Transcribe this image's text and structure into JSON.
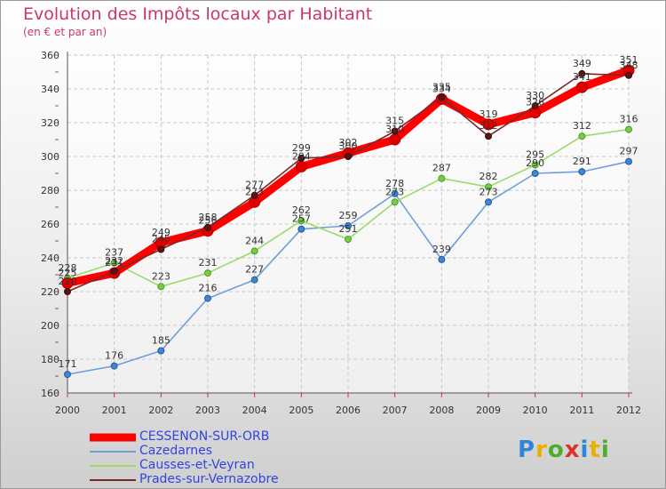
{
  "header": {
    "title": "Evolution des Impôts locaux par Habitant",
    "subtitle": "(en € et par an)"
  },
  "logo": {
    "text": "Proxiti",
    "letters": [
      {
        "ch": "P",
        "color": "#2f86d9"
      },
      {
        "ch": "r",
        "color": "#e8b000"
      },
      {
        "ch": "o",
        "color": "#4cae2c"
      },
      {
        "ch": "x",
        "color": "#d9332c"
      },
      {
        "ch": "i",
        "color": "#2f86d9"
      },
      {
        "ch": "t",
        "color": "#e8b000"
      },
      {
        "ch": "i",
        "color": "#4cae2c"
      }
    ]
  },
  "chart_data": {
    "type": "line",
    "title": "Evolution des Impôts locaux par Habitant",
    "subtitle": "(en € et par an)",
    "xlabel": "",
    "ylabel": "",
    "categories": [
      "2000",
      "2001",
      "2002",
      "2003",
      "2004",
      "2005",
      "2006",
      "2007",
      "2008",
      "2009",
      "2010",
      "2011",
      "2012"
    ],
    "ylim": [
      160,
      360
    ],
    "yticks": [
      160,
      180,
      200,
      220,
      240,
      260,
      280,
      300,
      320,
      340,
      360
    ],
    "grid": true,
    "legend_position": "bottom-left",
    "series": [
      {
        "name": "CESSENON-SUR-ORB",
        "color": "#ff0000",
        "values": [
          225,
          231,
          249,
          256,
          273,
          294,
          302,
          310,
          334,
          319,
          326,
          341,
          351
        ]
      },
      {
        "name": "Cazedarnes",
        "color": "#6f9fd8",
        "values": [
          171,
          176,
          185,
          216,
          227,
          257,
          259,
          278,
          239,
          273,
          290,
          291,
          297
        ]
      },
      {
        "name": "Causses-et-Veyran",
        "color": "#99dd66",
        "values": [
          228,
          237,
          223,
          231,
          244,
          262,
          251,
          273,
          287,
          282,
          295,
          312,
          316
        ]
      },
      {
        "name": "Prades-sur-Vernazobre",
        "color": "#7a2a2a",
        "values": [
          220,
          232,
          245,
          258,
          277,
          299,
          300,
          315,
          335,
          312,
          330,
          349,
          348
        ]
      }
    ]
  }
}
